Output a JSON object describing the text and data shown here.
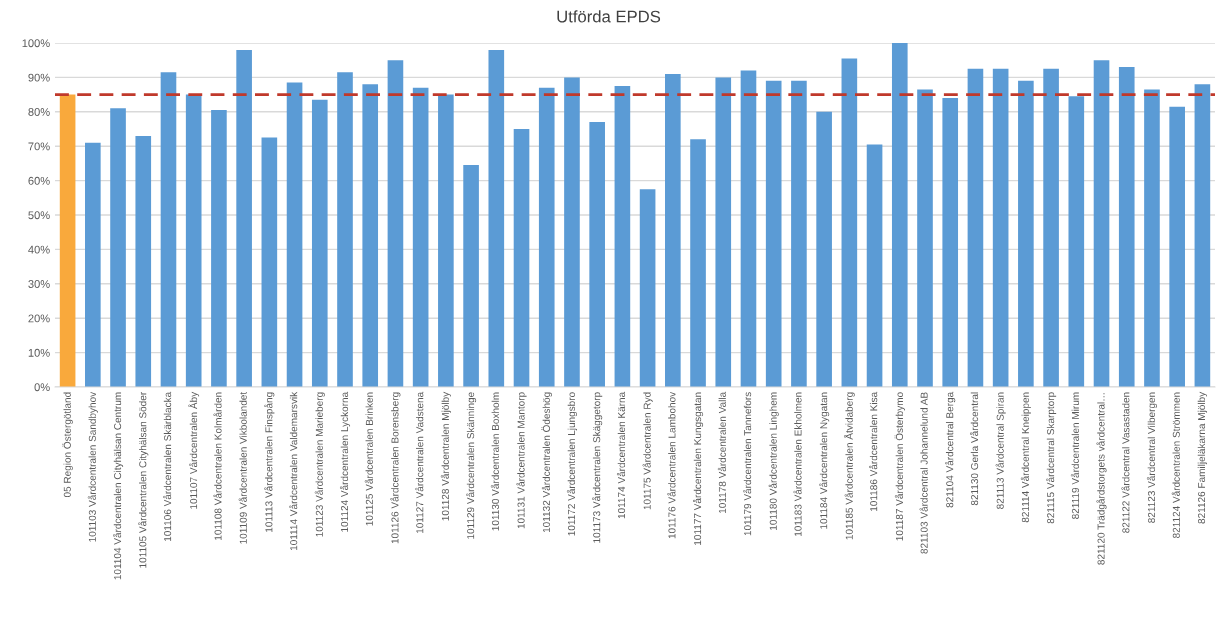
{
  "chart_data": {
    "type": "bar",
    "title": "Utförda EPDS",
    "categories": [
      "05 Region Östergötland",
      "101103 Vårdcentralen Sandbyhov",
      "101104 Vårdcentralen Cityhälsan Centrum",
      "101105 Vårdcentralen Cityhälsan Söder",
      "101106 Vårdcentralen Skärblacka",
      "101107 Vårdcentralen Åby",
      "101108 Vårdcentralen Kolmården",
      "101109 Vårdcentralen Vikbolandet",
      "101113 Vårdcentralen Finspång",
      "101114 Vårdcentralen Valdemarsvik",
      "101123 Vårdcentralen Marieberg",
      "101124 Vårdcentralen Lyckorna",
      "101125 Vårdcentralen Brinken",
      "101126 Vårdcentralen Borensberg",
      "101127 Vårdcentralen Vadstena",
      "101128 Vårdcentralen Mjölby",
      "101129 Vårdcentralen Skänninge",
      "101130 Vårdcentralen Boxholm",
      "101131 Vårdcentralen Mantorp",
      "101132 Vårdcentralen Ödeshög",
      "101172 Vårdcentralen Ljungsbro",
      "101173 Vårdcentralen Skäggetorp",
      "101174 Vårdcentralen Kärna",
      "101175 Vårdcentralen Ryd",
      "101176 Vårdcentralen Lambohov",
      "101177 Vårdcentralen Kungsgatan",
      "101178 Vårdcentralen Valla",
      "101179 Vårdcentralen Tannefors",
      "101180 Vårdcentralen Linghem",
      "101183 Vårdcentralen Ekholmen",
      "101184 Vårdcentralen Nygatan",
      "101185 Vårdcentralen Åtvidaberg",
      "101186 Vårdcentralen Kisa",
      "101187 Vårdcentralen Österbymo",
      "821103 Vårdcentral Johannelund AB",
      "821104 Vårdcentral Berga",
      "821130 Gerla Vårdcentral",
      "821113 Vårdcentral Spiran",
      "821114 Vårdcentral Kneippen",
      "821115 Vårdcentral Skarptorp",
      "821119 Vårdcentralen Mirum",
      "821120 Trädgårdstorgets vårdcentral…",
      "821122 Vårdcentral Vasastaden",
      "821123 Vårdcentral Vilbergen",
      "821124 Vårdcentralen Strömmen",
      "821126 Familjeläkarna Mjölby"
    ],
    "values": [
      85,
      71,
      81,
      73,
      91.5,
      85,
      80.5,
      98,
      72.5,
      88.5,
      83.5,
      91.5,
      88,
      95,
      87,
      85,
      64.5,
      98,
      75,
      87,
      90,
      77,
      87.5,
      57.5,
      91,
      72,
      90,
      92,
      89,
      89,
      80,
      95.5,
      70.5,
      100,
      86.5,
      84,
      92.5,
      92.5,
      89,
      92.5,
      84.5,
      95,
      93,
      86.5,
      81.5,
      88
    ],
    "colors": [
      "#f9a93c",
      "#5b9bd5",
      "#5b9bd5",
      "#5b9bd5",
      "#5b9bd5",
      "#5b9bd5",
      "#5b9bd5",
      "#5b9bd5",
      "#5b9bd5",
      "#5b9bd5",
      "#5b9bd5",
      "#5b9bd5",
      "#5b9bd5",
      "#5b9bd5",
      "#5b9bd5",
      "#5b9bd5",
      "#5b9bd5",
      "#5b9bd5",
      "#5b9bd5",
      "#5b9bd5",
      "#5b9bd5",
      "#5b9bd5",
      "#5b9bd5",
      "#5b9bd5",
      "#5b9bd5",
      "#5b9bd5",
      "#5b9bd5",
      "#5b9bd5",
      "#5b9bd5",
      "#5b9bd5",
      "#5b9bd5",
      "#5b9bd5",
      "#5b9bd5",
      "#5b9bd5",
      "#5b9bd5",
      "#5b9bd5",
      "#5b9bd5",
      "#5b9bd5",
      "#5b9bd5",
      "#5b9bd5",
      "#5b9bd5",
      "#5b9bd5",
      "#5b9bd5",
      "#5b9bd5",
      "#5b9bd5",
      "#5b9bd5"
    ],
    "ylim": [
      0,
      100
    ],
    "yticks": [
      {
        "value": 0,
        "label": "0%"
      },
      {
        "value": 10,
        "label": "10%"
      },
      {
        "value": 20,
        "label": "20%"
      },
      {
        "value": 30,
        "label": "30%"
      },
      {
        "value": 40,
        "label": "40%"
      },
      {
        "value": 50,
        "label": "50%"
      },
      {
        "value": 60,
        "label": "60%"
      },
      {
        "value": 70,
        "label": "70%"
      },
      {
        "value": 80,
        "label": "80%"
      },
      {
        "value": 90,
        "label": "90%"
      },
      {
        "value": 100,
        "label": "100%"
      }
    ],
    "ref_lines": [
      {
        "axis": "y",
        "value": 85,
        "color": "#c0392b",
        "line_style": "dashed"
      }
    ],
    "grid": "y"
  }
}
